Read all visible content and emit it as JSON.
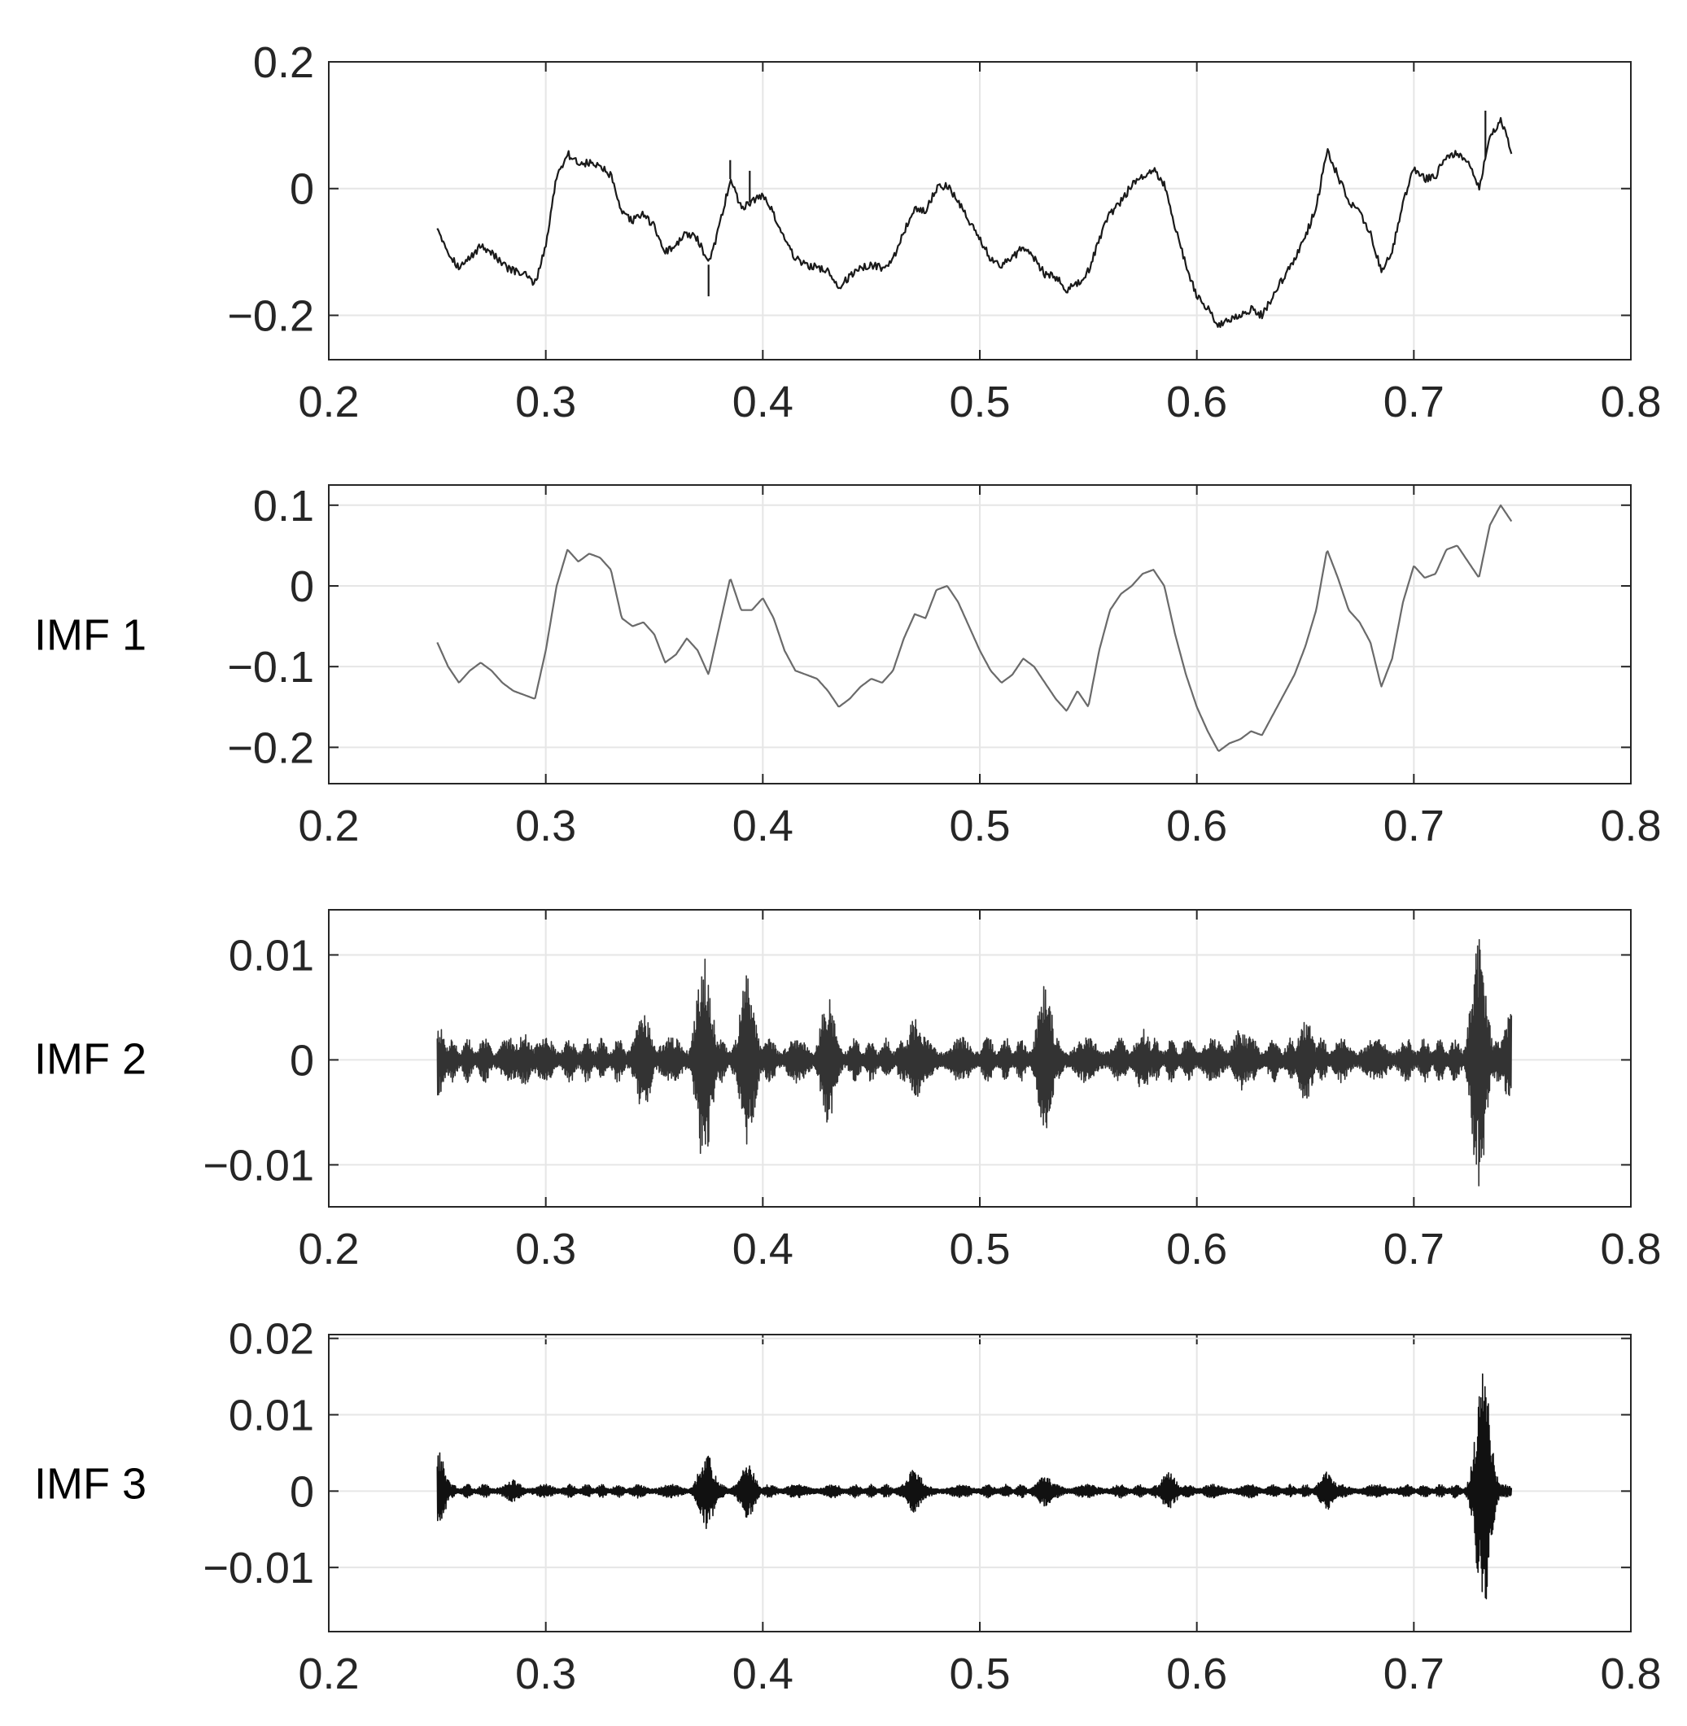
{
  "chart_data": [
    {
      "type": "line",
      "ylabel": "",
      "xlim": [
        0.2,
        0.8
      ],
      "ylim": [
        -0.27,
        0.2
      ],
      "xticks": [
        "0.2",
        "0.3",
        "0.4",
        "0.5",
        "0.6",
        "0.7",
        "0.8"
      ],
      "yticks": [
        {
          "v": 0.2,
          "label": "0.2"
        },
        {
          "v": 0,
          "label": "0"
        },
        {
          "v": -0.2,
          "label": "−0.2"
        }
      ],
      "grid": true,
      "color": "#1a1a1a",
      "noise": 0.006,
      "spikes": [
        [
          0.375,
          -0.05
        ],
        [
          0.385,
          0.03
        ],
        [
          0.394,
          0.05
        ],
        [
          0.733,
          0.075
        ]
      ],
      "points": [
        [
          0.25,
          -0.06
        ],
        [
          0.255,
          -0.1
        ],
        [
          0.26,
          -0.125
        ],
        [
          0.265,
          -0.11
        ],
        [
          0.27,
          -0.09
        ],
        [
          0.275,
          -0.1
        ],
        [
          0.28,
          -0.12
        ],
        [
          0.285,
          -0.13
        ],
        [
          0.29,
          -0.135
        ],
        [
          0.295,
          -0.15
        ],
        [
          0.3,
          -0.09
        ],
        [
          0.305,
          0.02
        ],
        [
          0.31,
          0.055
        ],
        [
          0.315,
          0.04
        ],
        [
          0.32,
          0.04
        ],
        [
          0.325,
          0.035
        ],
        [
          0.33,
          0.02
        ],
        [
          0.335,
          -0.04
        ],
        [
          0.34,
          -0.05
        ],
        [
          0.345,
          -0.04
        ],
        [
          0.35,
          -0.06
        ],
        [
          0.355,
          -0.1
        ],
        [
          0.36,
          -0.09
        ],
        [
          0.365,
          -0.07
        ],
        [
          0.37,
          -0.08
        ],
        [
          0.375,
          -0.12
        ],
        [
          0.38,
          -0.06
        ],
        [
          0.385,
          0.015
        ],
        [
          0.39,
          -0.03
        ],
        [
          0.395,
          -0.02
        ],
        [
          0.4,
          -0.01
        ],
        [
          0.405,
          -0.04
        ],
        [
          0.41,
          -0.08
        ],
        [
          0.415,
          -0.11
        ],
        [
          0.42,
          -0.12
        ],
        [
          0.425,
          -0.125
        ],
        [
          0.43,
          -0.13
        ],
        [
          0.435,
          -0.155
        ],
        [
          0.44,
          -0.14
        ],
        [
          0.445,
          -0.125
        ],
        [
          0.45,
          -0.12
        ],
        [
          0.455,
          -0.125
        ],
        [
          0.46,
          -0.11
        ],
        [
          0.465,
          -0.07
        ],
        [
          0.47,
          -0.03
        ],
        [
          0.475,
          -0.035
        ],
        [
          0.48,
          0.0
        ],
        [
          0.485,
          0.005
        ],
        [
          0.49,
          -0.02
        ],
        [
          0.495,
          -0.05
        ],
        [
          0.5,
          -0.08
        ],
        [
          0.505,
          -0.11
        ],
        [
          0.51,
          -0.12
        ],
        [
          0.515,
          -0.11
        ],
        [
          0.52,
          -0.09
        ],
        [
          0.525,
          -0.11
        ],
        [
          0.53,
          -0.135
        ],
        [
          0.535,
          -0.14
        ],
        [
          0.54,
          -0.16
        ],
        [
          0.545,
          -0.15
        ],
        [
          0.55,
          -0.13
        ],
        [
          0.555,
          -0.08
        ],
        [
          0.56,
          -0.04
        ],
        [
          0.565,
          -0.02
        ],
        [
          0.57,
          0.005
        ],
        [
          0.575,
          0.02
        ],
        [
          0.58,
          0.03
        ],
        [
          0.585,
          0.005
        ],
        [
          0.59,
          -0.06
        ],
        [
          0.595,
          -0.12
        ],
        [
          0.6,
          -0.17
        ],
        [
          0.605,
          -0.19
        ],
        [
          0.61,
          -0.215
        ],
        [
          0.615,
          -0.205
        ],
        [
          0.62,
          -0.2
        ],
        [
          0.625,
          -0.19
        ],
        [
          0.63,
          -0.2
        ],
        [
          0.635,
          -0.17
        ],
        [
          0.64,
          -0.14
        ],
        [
          0.645,
          -0.11
        ],
        [
          0.65,
          -0.075
        ],
        [
          0.655,
          -0.03
        ],
        [
          0.66,
          0.06
        ],
        [
          0.665,
          0.02
        ],
        [
          0.67,
          -0.02
        ],
        [
          0.675,
          -0.04
        ],
        [
          0.68,
          -0.07
        ],
        [
          0.685,
          -0.13
        ],
        [
          0.69,
          -0.1
        ],
        [
          0.695,
          -0.02
        ],
        [
          0.7,
          0.03
        ],
        [
          0.705,
          0.015
        ],
        [
          0.71,
          0.02
        ],
        [
          0.715,
          0.05
        ],
        [
          0.72,
          0.055
        ],
        [
          0.725,
          0.04
        ],
        [
          0.73,
          0.0
        ],
        [
          0.735,
          0.08
        ],
        [
          0.74,
          0.11
        ],
        [
          0.745,
          0.06
        ]
      ]
    },
    {
      "type": "line",
      "ylabel": "IMF 1",
      "xlim": [
        0.2,
        0.8
      ],
      "ylim": [
        -0.245,
        0.125
      ],
      "xticks": [
        "0.2",
        "0.3",
        "0.4",
        "0.5",
        "0.6",
        "0.7",
        "0.8"
      ],
      "yticks": [
        {
          "v": 0.1,
          "label": "0.1"
        },
        {
          "v": 0,
          "label": "0"
        },
        {
          "v": -0.1,
          "label": "−0.1"
        },
        {
          "v": -0.2,
          "label": "−0.2"
        }
      ],
      "grid": true,
      "color": "#6a6a6a",
      "noise": 0,
      "spikes": [],
      "points": [
        [
          0.25,
          -0.07
        ],
        [
          0.255,
          -0.1
        ],
        [
          0.26,
          -0.12
        ],
        [
          0.265,
          -0.105
        ],
        [
          0.27,
          -0.095
        ],
        [
          0.275,
          -0.105
        ],
        [
          0.28,
          -0.12
        ],
        [
          0.285,
          -0.13
        ],
        [
          0.29,
          -0.135
        ],
        [
          0.295,
          -0.14
        ],
        [
          0.3,
          -0.08
        ],
        [
          0.305,
          0.0
        ],
        [
          0.31,
          0.045
        ],
        [
          0.315,
          0.03
        ],
        [
          0.32,
          0.04
        ],
        [
          0.325,
          0.035
        ],
        [
          0.33,
          0.02
        ],
        [
          0.335,
          -0.04
        ],
        [
          0.34,
          -0.05
        ],
        [
          0.345,
          -0.045
        ],
        [
          0.35,
          -0.06
        ],
        [
          0.355,
          -0.095
        ],
        [
          0.36,
          -0.085
        ],
        [
          0.365,
          -0.065
        ],
        [
          0.37,
          -0.08
        ],
        [
          0.375,
          -0.11
        ],
        [
          0.38,
          -0.05
        ],
        [
          0.385,
          0.01
        ],
        [
          0.39,
          -0.03
        ],
        [
          0.395,
          -0.03
        ],
        [
          0.4,
          -0.015
        ],
        [
          0.405,
          -0.04
        ],
        [
          0.41,
          -0.08
        ],
        [
          0.415,
          -0.105
        ],
        [
          0.42,
          -0.11
        ],
        [
          0.425,
          -0.115
        ],
        [
          0.43,
          -0.13
        ],
        [
          0.435,
          -0.15
        ],
        [
          0.44,
          -0.14
        ],
        [
          0.445,
          -0.125
        ],
        [
          0.45,
          -0.115
        ],
        [
          0.455,
          -0.12
        ],
        [
          0.46,
          -0.105
        ],
        [
          0.465,
          -0.065
        ],
        [
          0.47,
          -0.035
        ],
        [
          0.475,
          -0.04
        ],
        [
          0.48,
          -0.005
        ],
        [
          0.485,
          0.0
        ],
        [
          0.49,
          -0.02
        ],
        [
          0.495,
          -0.05
        ],
        [
          0.5,
          -0.08
        ],
        [
          0.505,
          -0.105
        ],
        [
          0.51,
          -0.12
        ],
        [
          0.515,
          -0.11
        ],
        [
          0.52,
          -0.09
        ],
        [
          0.525,
          -0.1
        ],
        [
          0.53,
          -0.12
        ],
        [
          0.535,
          -0.14
        ],
        [
          0.54,
          -0.155
        ],
        [
          0.545,
          -0.13
        ],
        [
          0.55,
          -0.15
        ],
        [
          0.555,
          -0.08
        ],
        [
          0.56,
          -0.03
        ],
        [
          0.565,
          -0.01
        ],
        [
          0.57,
          0.0
        ],
        [
          0.575,
          0.015
        ],
        [
          0.58,
          0.02
        ],
        [
          0.585,
          0.0
        ],
        [
          0.59,
          -0.06
        ],
        [
          0.595,
          -0.11
        ],
        [
          0.6,
          -0.15
        ],
        [
          0.605,
          -0.18
        ],
        [
          0.61,
          -0.205
        ],
        [
          0.615,
          -0.195
        ],
        [
          0.62,
          -0.19
        ],
        [
          0.625,
          -0.18
        ],
        [
          0.63,
          -0.185
        ],
        [
          0.635,
          -0.16
        ],
        [
          0.64,
          -0.135
        ],
        [
          0.645,
          -0.11
        ],
        [
          0.65,
          -0.075
        ],
        [
          0.655,
          -0.03
        ],
        [
          0.66,
          0.045
        ],
        [
          0.665,
          0.01
        ],
        [
          0.67,
          -0.03
        ],
        [
          0.675,
          -0.045
        ],
        [
          0.68,
          -0.07
        ],
        [
          0.685,
          -0.125
        ],
        [
          0.69,
          -0.09
        ],
        [
          0.695,
          -0.02
        ],
        [
          0.7,
          0.025
        ],
        [
          0.705,
          0.01
        ],
        [
          0.71,
          0.015
        ],
        [
          0.715,
          0.045
        ],
        [
          0.72,
          0.05
        ],
        [
          0.725,
          0.03
        ],
        [
          0.73,
          0.01
        ],
        [
          0.735,
          0.075
        ],
        [
          0.74,
          0.1
        ],
        [
          0.745,
          0.08
        ]
      ]
    },
    {
      "type": "line",
      "ylabel": "IMF 2",
      "xlim": [
        0.2,
        0.8
      ],
      "ylim": [
        -0.014,
        0.0143
      ],
      "xticks": [
        "0.2",
        "0.3",
        "0.4",
        "0.5",
        "0.6",
        "0.7",
        "0.8"
      ],
      "yticks": [
        {
          "v": 0.01,
          "label": "0.01"
        },
        {
          "v": 0,
          "label": "0"
        },
        {
          "v": -0.01,
          "label": "−0.01"
        }
      ],
      "grid": true,
      "color": "#333333",
      "base_amp": 0.0022,
      "seed": 7,
      "bursts": [
        [
          0.25,
          0.0035
        ],
        [
          0.29,
          0.0025
        ],
        [
          0.345,
          0.005
        ],
        [
          0.373,
          0.0105
        ],
        [
          0.393,
          0.0085
        ],
        [
          0.43,
          0.006
        ],
        [
          0.47,
          0.004
        ],
        [
          0.53,
          0.0075
        ],
        [
          0.575,
          0.003
        ],
        [
          0.62,
          0.003
        ],
        [
          0.65,
          0.004
        ],
        [
          0.73,
          0.012
        ],
        [
          0.745,
          0.0045
        ]
      ],
      "x_range": [
        0.25,
        0.745
      ]
    },
    {
      "type": "line",
      "ylabel": "IMF 3",
      "xlim": [
        0.2,
        0.8
      ],
      "ylim": [
        -0.0184,
        0.0205
      ],
      "xticks": [
        "0.2",
        "0.3",
        "0.4",
        "0.5",
        "0.6",
        "0.7",
        "0.8"
      ],
      "yticks": [
        {
          "v": 0.02,
          "label": "0.02"
        },
        {
          "v": 0.01,
          "label": "0.01"
        },
        {
          "v": 0,
          "label": "0"
        },
        {
          "v": -0.01,
          "label": "−0.01"
        }
      ],
      "grid": true,
      "color": "#111111",
      "base_amp": 0.0009,
      "seed": 13,
      "bursts": [
        [
          0.25,
          0.0055
        ],
        [
          0.285,
          0.0015
        ],
        [
          0.374,
          0.005
        ],
        [
          0.393,
          0.0035
        ],
        [
          0.47,
          0.003
        ],
        [
          0.53,
          0.002
        ],
        [
          0.587,
          0.0025
        ],
        [
          0.66,
          0.0025
        ],
        [
          0.732,
          0.0155
        ]
      ],
      "x_range": [
        0.25,
        0.745
      ]
    }
  ]
}
